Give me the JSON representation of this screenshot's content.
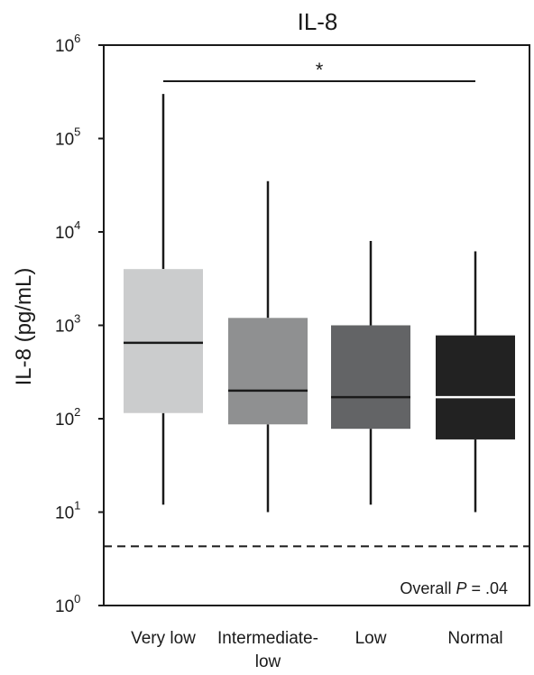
{
  "chart_data": {
    "type": "box",
    "title": "IL-8",
    "ylabel": "IL-8 (pg/mL)",
    "xlabel": "",
    "yscale": "log",
    "ylim": [
      1,
      1000000
    ],
    "yticks": [
      {
        "value": 1,
        "base": "10",
        "exp": "0"
      },
      {
        "value": 10,
        "base": "10",
        "exp": "1"
      },
      {
        "value": 100,
        "base": "10",
        "exp": "2"
      },
      {
        "value": 1000,
        "base": "10",
        "exp": "3"
      },
      {
        "value": 10000,
        "base": "10",
        "exp": "4"
      },
      {
        "value": 100000,
        "base": "10",
        "exp": "5"
      },
      {
        "value": 1000000,
        "base": "10",
        "exp": "6"
      }
    ],
    "categories": [
      {
        "label_lines": [
          "Very low"
        ],
        "color": "#cbcccd",
        "median_color": "#1a1a1a",
        "whisker_low": 12,
        "q1": 115,
        "median": 650,
        "q3": 4000,
        "whisker_high": 300000
      },
      {
        "label_lines": [
          "Intermediate-",
          "low"
        ],
        "color": "#8f9091",
        "median_color": "#1a1a1a",
        "whisker_low": 10,
        "q1": 87,
        "median": 200,
        "q3": 1200,
        "whisker_high": 35000
      },
      {
        "label_lines": [
          "Low"
        ],
        "color": "#636466",
        "median_color": "#1a1a1a",
        "whisker_low": 12,
        "q1": 78,
        "median": 170,
        "q3": 1000,
        "whisker_high": 8000
      },
      {
        "label_lines": [
          "Normal"
        ],
        "color": "#222222",
        "median_color": "#ffffff",
        "whisker_low": 10,
        "q1": 60,
        "median": 170,
        "q3": 780,
        "whisker_high": 6200
      }
    ],
    "reference_line": {
      "value": 4.3,
      "style": "dashed"
    },
    "significance": {
      "from_category": 0,
      "to_category": 3,
      "label": "*"
    },
    "annotation": {
      "prefix": "Overall ",
      "symbol": "P",
      "suffix": " = .04"
    }
  }
}
